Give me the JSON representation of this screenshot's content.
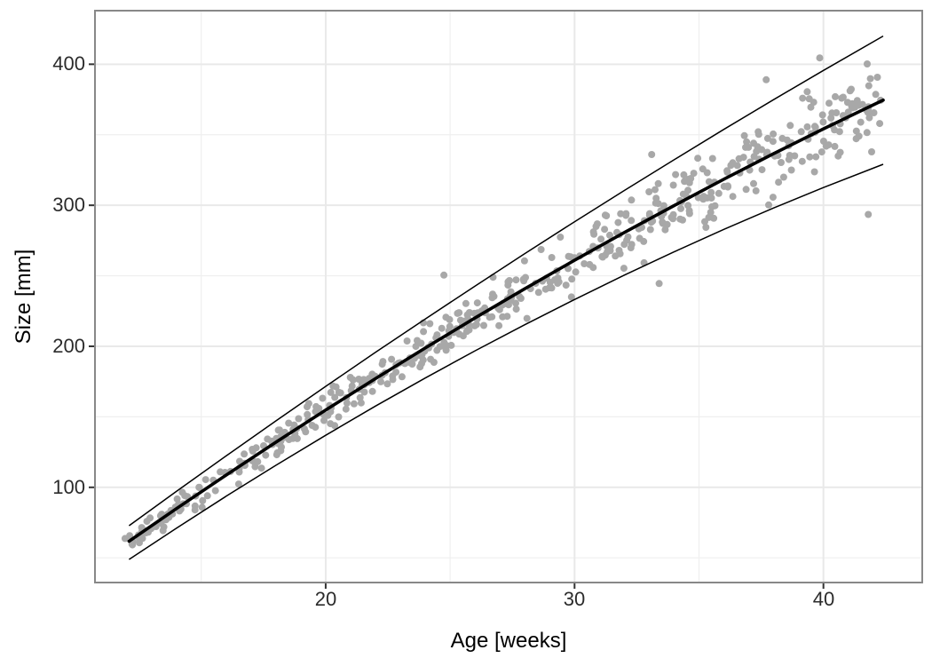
{
  "chart_data": {
    "type": "scatter",
    "title": "",
    "xlabel": "Age [weeks]",
    "ylabel": "Size [mm]",
    "xlim": [
      10.73,
      43.97
    ],
    "ylim": [
      32.5,
      438
    ],
    "x_ticks": {
      "major": [
        20,
        30,
        40
      ],
      "minor": [
        15,
        25,
        35
      ]
    },
    "y_ticks": {
      "major": [
        100,
        200,
        300,
        400
      ],
      "minor": [
        50,
        150,
        250,
        350
      ]
    },
    "x_tick_labels": [
      "20",
      "30",
      "40"
    ],
    "y_tick_labels": [
      "400",
      "300",
      "200",
      "100"
    ],
    "grid": "major+minor",
    "legend": "none",
    "curves": {
      "description": "center = fitted mean growth curve (thick), upper/lower = growth band limits (thin)",
      "weeks": [
        12.1,
        14,
        16,
        18,
        20,
        22,
        24,
        26,
        28,
        30,
        32,
        34,
        36,
        38,
        40,
        42.4
      ],
      "center": [
        61.8,
        84.9,
        108.7,
        132.0,
        154.8,
        177.1,
        198.8,
        220.1,
        240.8,
        261.0,
        280.7,
        299.8,
        318.5,
        336.6,
        354.2,
        374.6
      ],
      "upper": [
        72.8,
        97.1,
        122.3,
        147.1,
        171.6,
        195.7,
        219.4,
        242.7,
        265.7,
        288.3,
        310.5,
        332.3,
        353.8,
        374.9,
        395.6,
        420.0
      ],
      "lower": [
        48.9,
        71.0,
        93.7,
        115.6,
        136.9,
        157.6,
        177.5,
        196.8,
        215.3,
        233.2,
        250.5,
        267.0,
        282.9,
        298.1,
        312.6,
        329.1
      ]
    },
    "scatter": {
      "n": 520,
      "seed": 13,
      "x_range": [
        11.85,
        42.3
      ],
      "center_poly": [
        -96.3,
        13.85,
        -0.0647
      ],
      "halfwidth_poly": [
        8.3,
        0.0725,
        0.01895
      ],
      "noise_scale": 1.22,
      "color": "#a8a8a8",
      "radius": 4
    },
    "extra_points": [
      [
        24.75,
        250.5
      ],
      [
        33.1,
        336.0
      ],
      [
        33.4,
        244.5
      ],
      [
        37.7,
        389.0
      ],
      [
        39.85,
        404.5
      ],
      [
        41.8,
        293.5
      ]
    ],
    "styles": {
      "panel_border_color": "#888888",
      "grid_major_color": "#e9e9e9",
      "grid_minor_color": "#efefef",
      "tick_mark_color": "#333333",
      "line_color": "#000000",
      "point_color": "#a8a8a8",
      "background": "#ffffff"
    }
  }
}
